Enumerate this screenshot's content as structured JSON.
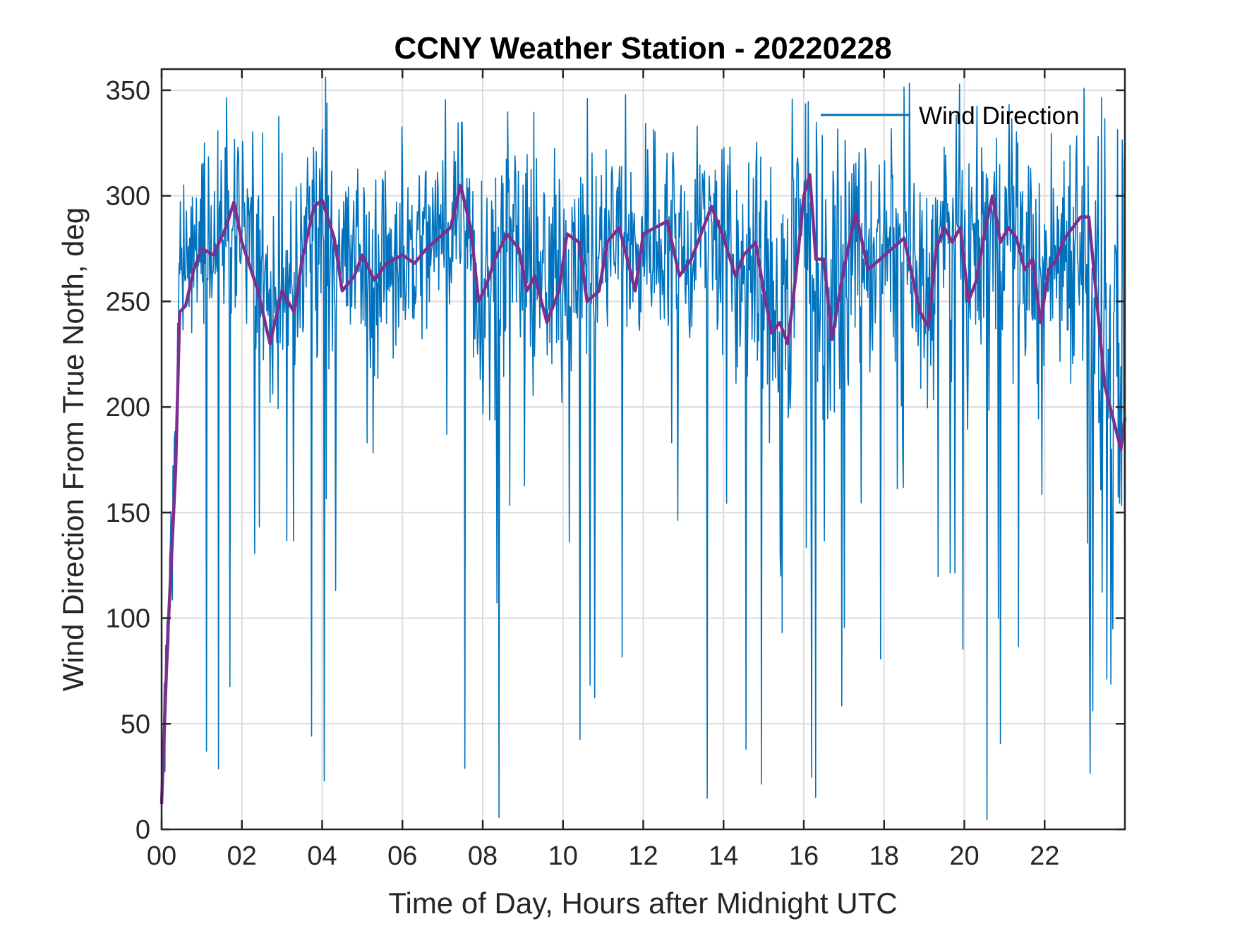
{
  "chart_data": {
    "type": "line",
    "title": "CCNY Weather Station - 20220228",
    "xlabel": "Time of Day, Hours after Midnight UTC",
    "ylabel": "Wind Direction From True North, deg",
    "xlim": [
      0,
      24
    ],
    "ylim": [
      0,
      360
    ],
    "x_ticks": [
      0,
      2,
      4,
      6,
      8,
      10,
      12,
      14,
      16,
      18,
      20,
      22
    ],
    "x_tick_labels": [
      "00",
      "02",
      "04",
      "06",
      "08",
      "10",
      "12",
      "14",
      "16",
      "18",
      "20",
      "22"
    ],
    "y_ticks": [
      0,
      50,
      100,
      150,
      200,
      250,
      300,
      350
    ],
    "y_tick_labels": [
      "0",
      "50",
      "100",
      "150",
      "200",
      "250",
      "300",
      "350"
    ],
    "grid": true,
    "legend": {
      "position": "top-right",
      "entries": [
        "Wind Direction"
      ]
    },
    "series": [
      {
        "name": "Wind Direction",
        "color": "#0072BD",
        "style": "raw noisy samples, approx. 1-minute resolution; band roughly 230–320 deg with frequent dips toward 0–150 deg",
        "envelope_hours": [
          0,
          0.3,
          0.5,
          1,
          2,
          3,
          4,
          5,
          6,
          7,
          7.5,
          8,
          9,
          10,
          11,
          12,
          13,
          14,
          15,
          16,
          17,
          18,
          19,
          20,
          21,
          22,
          23,
          23.5,
          24
        ],
        "envelope_center": [
          240,
          250,
          270,
          280,
          290,
          250,
          295,
          270,
          272,
          285,
          300,
          260,
          270,
          270,
          280,
          280,
          282,
          272,
          250,
          280,
          265,
          275,
          265,
          280,
          280,
          270,
          280,
          210,
          200
        ],
        "envelope_spread": [
          60,
          45,
          35,
          35,
          38,
          45,
          45,
          40,
          40,
          35,
          35,
          50,
          40,
          45,
          40,
          40,
          40,
          45,
          55,
          50,
          45,
          40,
          45,
          45,
          40,
          45,
          55,
          80,
          90
        ]
      },
      {
        "name": "",
        "color": "#7E2F8E",
        "style": "smoothed running mean",
        "x": [
          0,
          0.15,
          0.35,
          0.45,
          0.6,
          0.8,
          1.0,
          1.3,
          1.6,
          1.8,
          2.0,
          2.4,
          2.7,
          3.0,
          3.3,
          3.5,
          3.8,
          4.0,
          4.3,
          4.5,
          4.8,
          5.0,
          5.3,
          5.6,
          6.0,
          6.3,
          6.6,
          6.9,
          7.2,
          7.45,
          7.7,
          7.9,
          8.1,
          8.3,
          8.6,
          8.9,
          9.1,
          9.3,
          9.6,
          9.9,
          10.1,
          10.4,
          10.6,
          10.9,
          11.1,
          11.4,
          11.6,
          11.8,
          12.0,
          12.3,
          12.6,
          12.9,
          13.2,
          13.5,
          13.7,
          14.0,
          14.3,
          14.5,
          14.8,
          15.0,
          15.2,
          15.4,
          15.6,
          15.8,
          16.0,
          16.15,
          16.3,
          16.5,
          16.7,
          16.9,
          17.1,
          17.3,
          17.6,
          17.9,
          18.2,
          18.5,
          18.7,
          18.9,
          19.1,
          19.3,
          19.5,
          19.7,
          19.9,
          20.1,
          20.3,
          20.5,
          20.7,
          20.9,
          21.1,
          21.3,
          21.5,
          21.7,
          21.9,
          22.1,
          22.3,
          22.5,
          22.7,
          22.9,
          23.1,
          23.3,
          23.5,
          23.7,
          23.9,
          24.0
        ],
        "y": [
          12,
          90,
          170,
          245,
          248,
          265,
          275,
          272,
          285,
          297,
          278,
          255,
          230,
          255,
          245,
          270,
          295,
          298,
          280,
          255,
          262,
          272,
          260,
          268,
          272,
          268,
          275,
          280,
          285,
          305,
          285,
          250,
          258,
          270,
          282,
          275,
          255,
          262,
          240,
          255,
          282,
          278,
          250,
          255,
          278,
          285,
          270,
          255,
          282,
          285,
          288,
          262,
          270,
          285,
          295,
          280,
          262,
          272,
          278,
          255,
          235,
          240,
          230,
          262,
          300,
          310,
          270,
          270,
          232,
          255,
          275,
          292,
          265,
          270,
          275,
          280,
          262,
          245,
          238,
          275,
          285,
          278,
          285,
          250,
          260,
          282,
          300,
          278,
          285,
          280,
          265,
          270,
          240,
          265,
          270,
          280,
          285,
          290,
          290,
          250,
          210,
          195,
          180,
          195
        ]
      }
    ]
  }
}
